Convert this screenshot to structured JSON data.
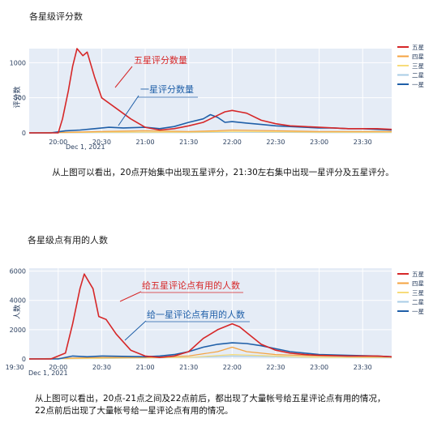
{
  "legend_colors": {
    "五星": "#d62728",
    "四星": "#f5a340",
    "三星": "#f7dc7a",
    "二星": "#a9cde6",
    "一星": "#1f5fa8"
  },
  "chart_data": [
    {
      "type": "line",
      "title": "各星级评分数",
      "xlabel": "",
      "ylabel": "评分数",
      "x_start": "20:00",
      "x_tick_labels": [
        "20:00",
        "20:30",
        "21:00",
        "21:30",
        "22:00",
        "22:30",
        "23:00",
        "23:30"
      ],
      "x_sub_label": "Dec 1, 2021",
      "ylim": [
        0,
        1200
      ],
      "y_tick_values": [
        0,
        500,
        1000
      ],
      "y_tick_labels": [
        "0",
        "500",
        "1000"
      ],
      "legend_position": "right",
      "series": [
        {
          "name": "五星",
          "x": [
            "19:40",
            "19:55",
            "20:00",
            "20:03",
            "20:07",
            "20:10",
            "20:13",
            "20:17",
            "20:20",
            "20:25",
            "20:30",
            "20:40",
            "20:50",
            "21:00",
            "21:10",
            "21:20",
            "21:30",
            "21:40",
            "21:45",
            "21:50",
            "21:55",
            "22:00",
            "22:05",
            "22:10",
            "22:20",
            "22:30",
            "22:40",
            "22:50",
            "23:00",
            "23:10",
            "23:20",
            "23:30",
            "23:40",
            "23:50"
          ],
          "y": [
            0,
            0,
            0,
            200,
            600,
            950,
            1200,
            1100,
            1150,
            800,
            500,
            350,
            200,
            80,
            40,
            60,
            100,
            150,
            200,
            250,
            300,
            320,
            300,
            280,
            180,
            130,
            100,
            90,
            80,
            70,
            60,
            60,
            60,
            50
          ]
        },
        {
          "name": "四星",
          "x": [
            "19:40",
            "20:10",
            "20:30",
            "21:00",
            "21:30",
            "21:50",
            "22:00",
            "22:30",
            "23:00",
            "23:30",
            "23:50"
          ],
          "y": [
            0,
            10,
            20,
            30,
            20,
            30,
            40,
            30,
            20,
            20,
            20
          ]
        },
        {
          "name": "三星",
          "x": [
            "19:40",
            "20:30",
            "21:30",
            "22:00",
            "23:00",
            "23:50"
          ],
          "y": [
            0,
            10,
            10,
            20,
            10,
            10
          ]
        },
        {
          "name": "二星",
          "x": [
            "19:40",
            "20:30",
            "21:30",
            "22:00",
            "23:00",
            "23:50"
          ],
          "y": [
            0,
            5,
            5,
            10,
            5,
            5
          ]
        },
        {
          "name": "一星",
          "x": [
            "19:40",
            "19:55",
            "20:05",
            "20:15",
            "20:25",
            "20:35",
            "20:45",
            "21:00",
            "21:10",
            "21:20",
            "21:30",
            "21:40",
            "21:45",
            "21:50",
            "21:55",
            "22:00",
            "22:10",
            "22:20",
            "22:30",
            "22:40",
            "22:50",
            "23:00",
            "23:10",
            "23:20",
            "23:30",
            "23:40",
            "23:50"
          ],
          "y": [
            0,
            0,
            30,
            40,
            60,
            80,
            70,
            80,
            60,
            90,
            150,
            200,
            260,
            220,
            150,
            160,
            140,
            120,
            100,
            90,
            80,
            70,
            70,
            60,
            60,
            50,
            40
          ]
        }
      ],
      "annotations": [
        {
          "text": "五星评分数量",
          "color": "#d62728"
        },
        {
          "text": "一星评分数量",
          "color": "#1f5fa8"
        }
      ]
    },
    {
      "type": "line",
      "title": "各星级点有用的人数",
      "xlabel": "",
      "ylabel": "人数",
      "x_start": "19:30",
      "x_tick_labels": [
        "19:30",
        "20:00",
        "20:30",
        "21:00",
        "21:30",
        "22:00",
        "22:30",
        "23:00",
        "23:30"
      ],
      "x_sub_label": "Dec 1, 2021",
      "ylim": [
        0,
        6200
      ],
      "y_tick_values": [
        0,
        2000,
        4000,
        6000
      ],
      "y_tick_labels": [
        "0",
        "2000",
        "4000",
        "6000"
      ],
      "legend_position": "right",
      "series": [
        {
          "name": "五星",
          "x": [
            "19:40",
            "19:55",
            "20:05",
            "20:10",
            "20:15",
            "20:18",
            "20:21",
            "20:24",
            "20:28",
            "20:33",
            "20:40",
            "20:50",
            "21:00",
            "21:10",
            "21:20",
            "21:30",
            "21:40",
            "21:50",
            "22:00",
            "22:05",
            "22:10",
            "22:20",
            "22:30",
            "22:40",
            "22:50",
            "23:00",
            "23:20",
            "23:40",
            "23:50"
          ],
          "y": [
            0,
            0,
            400,
            2400,
            4800,
            5800,
            5300,
            4800,
            2900,
            2700,
            1700,
            600,
            200,
            100,
            200,
            500,
            1400,
            2000,
            2400,
            2200,
            1800,
            1000,
            600,
            400,
            300,
            250,
            200,
            200,
            150
          ]
        },
        {
          "name": "四星",
          "x": [
            "19:40",
            "20:30",
            "21:00",
            "21:30",
            "21:50",
            "22:00",
            "22:10",
            "22:30",
            "23:00",
            "23:50"
          ],
          "y": [
            0,
            100,
            100,
            200,
            500,
            800,
            500,
            300,
            200,
            150
          ]
        },
        {
          "name": "三星",
          "x": [
            "19:40",
            "20:30",
            "21:30",
            "22:00",
            "22:30",
            "23:00",
            "23:50"
          ],
          "y": [
            0,
            50,
            100,
            300,
            200,
            100,
            100
          ]
        },
        {
          "name": "二星",
          "x": [
            "19:40",
            "20:30",
            "21:30",
            "22:00",
            "22:30",
            "23:00",
            "23:50"
          ],
          "y": [
            0,
            30,
            100,
            200,
            150,
            100,
            80
          ]
        },
        {
          "name": "一星",
          "x": [
            "19:40",
            "20:00",
            "20:10",
            "20:20",
            "20:30",
            "20:40",
            "21:00",
            "21:10",
            "21:20",
            "21:30",
            "21:40",
            "21:50",
            "22:00",
            "22:10",
            "22:20",
            "22:30",
            "22:40",
            "22:50",
            "23:00",
            "23:20",
            "23:40",
            "23:50"
          ],
          "y": [
            0,
            0,
            200,
            150,
            200,
            180,
            150,
            200,
            300,
            500,
            800,
            1000,
            1100,
            1050,
            900,
            700,
            500,
            400,
            300,
            250,
            200,
            150
          ]
        }
      ],
      "annotations": [
        {
          "text": "给五星评论点有用的人数",
          "color": "#d62728"
        },
        {
          "text": "给一星评论点有用的人数",
          "color": "#1f5fa8"
        }
      ]
    }
  ],
  "captions": {
    "chart1": "从上图可以看出，20点开始集中出现五星评分，21:30左右集中出现一星评分及五星评分。",
    "chart2_line1": "从上图可以看出，20点-21点之间及22点前后，都出现了大量帐号给五星评论点有用的情况，",
    "chart2_line2": "22点前后出现了大量帐号给一星评论点有用的情况。"
  }
}
